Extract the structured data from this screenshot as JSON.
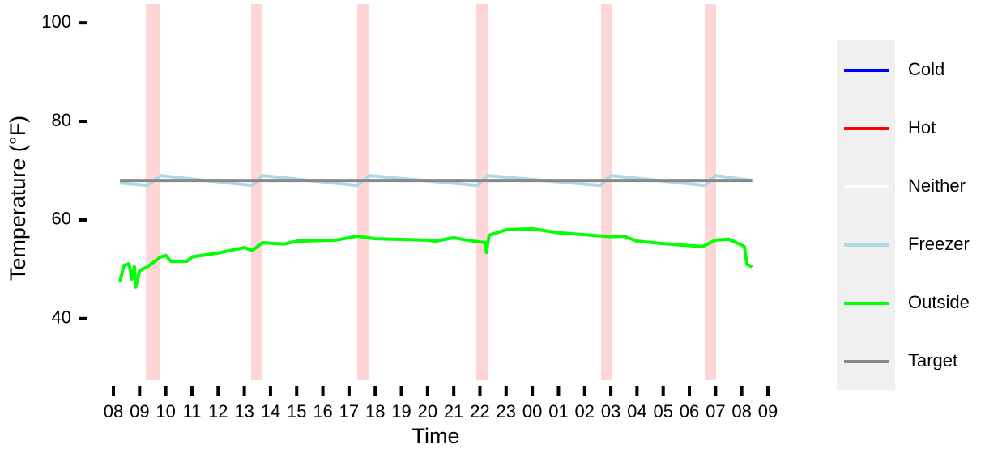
{
  "chart_data": {
    "type": "line",
    "x_label": "Time",
    "y_label": "Temperature (°F)",
    "xlim": [
      7.0,
      34.0
    ],
    "ylim": [
      27.5,
      103.8
    ],
    "xticks": [
      {
        "value": 8,
        "label": "08"
      },
      {
        "value": 9,
        "label": "09"
      },
      10,
      11,
      12,
      13,
      14,
      15,
      16,
      17,
      18,
      19,
      20,
      21,
      22,
      23,
      {
        "value": 24,
        "label": "00"
      },
      {
        "value": 25,
        "label": "01"
      },
      {
        "value": 26,
        "label": "02"
      },
      {
        "value": 27,
        "label": "03"
      },
      {
        "value": 28,
        "label": "04"
      },
      {
        "value": 29,
        "label": "05"
      },
      {
        "value": 30,
        "label": "06"
      },
      {
        "value": 31,
        "label": "07"
      },
      {
        "value": 32,
        "label": "08"
      },
      {
        "value": 33,
        "label": "09"
      }
    ],
    "yticks": [
      40,
      60,
      80,
      100
    ],
    "grid": false,
    "bands": [
      [
        9.24,
        9.79
      ],
      [
        13.26,
        13.69
      ],
      [
        17.31,
        17.78
      ],
      [
        21.86,
        22.33
      ],
      [
        26.63,
        27.06
      ],
      [
        30.59,
        31.02
      ]
    ],
    "band_color": "#ffd6d6",
    "legend_position": "right",
    "series": [
      {
        "name": "Cold",
        "color": "#0000ff",
        "x": [],
        "values": []
      },
      {
        "name": "Hot",
        "color": "#ff0000",
        "x": [],
        "values": []
      },
      {
        "name": "Neither",
        "color": "#ffffff",
        "x": [],
        "values": []
      },
      {
        "name": "Freezer",
        "color": "#add8e6",
        "x": [
          8.25,
          9.3,
          9.8,
          13.3,
          13.7,
          17.3,
          17.8,
          21.9,
          22.3,
          26.6,
          27.0,
          30.6,
          31.0,
          32.4
        ],
        "values": [
          67.5,
          67.0,
          69.0,
          67.0,
          69.0,
          67.0,
          69.0,
          67.0,
          69.0,
          67.0,
          69.0,
          67.0,
          69.0,
          68.0
        ]
      },
      {
        "name": "Outside",
        "color": "#00ff00",
        "x": [
          8.25,
          8.4,
          8.6,
          8.7,
          8.8,
          8.85,
          9.0,
          9.3,
          9.8,
          10.0,
          10.2,
          10.8,
          11.0,
          12.0,
          13.0,
          13.3,
          13.7,
          14.5,
          15.0,
          16.5,
          17.3,
          18.0,
          20.0,
          20.3,
          21.0,
          21.5,
          22.2,
          22.25,
          22.35,
          23.0,
          24.0,
          25.0,
          27.0,
          27.5,
          28.0,
          29.0,
          30.5,
          31.0,
          31.5,
          32.0,
          32.1,
          32.2,
          32.4
        ],
        "values": [
          47.5,
          50.8,
          51.1,
          48.0,
          50.5,
          46.4,
          49.7,
          50.5,
          52.5,
          52.8,
          51.6,
          51.6,
          52.5,
          53.3,
          54.4,
          53.8,
          55.4,
          55.1,
          55.7,
          55.9,
          56.7,
          56.2,
          55.9,
          55.7,
          56.4,
          55.9,
          55.4,
          53.4,
          56.9,
          58.0,
          58.2,
          57.4,
          56.6,
          56.7,
          55.7,
          55.2,
          54.6,
          55.9,
          56.1,
          54.9,
          54.6,
          51.0,
          50.5
        ]
      },
      {
        "name": "Target",
        "color": "#888888",
        "x": [
          8.25,
          32.4
        ],
        "values": [
          68,
          68
        ]
      }
    ]
  }
}
